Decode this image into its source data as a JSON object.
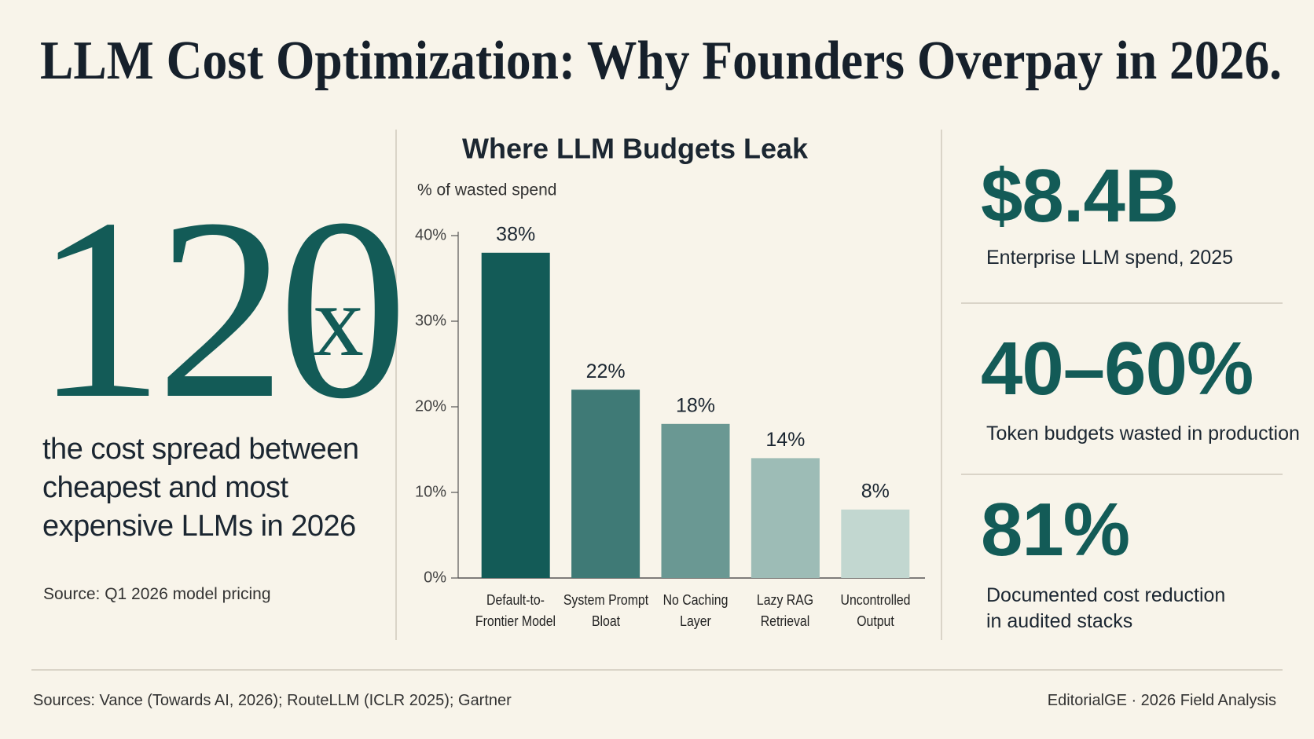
{
  "title": "LLM Cost Optimization: Why Founders Overpay in 2026.",
  "hero": {
    "number": "120",
    "suffix": "x",
    "caption": "the cost spread between cheapest and most expensive LLMs in 2026",
    "source": "Source: Q1 2026 model pricing"
  },
  "chart_data": {
    "type": "bar",
    "title": "Where LLM Budgets Leak",
    "y_label": "% of wasted spend",
    "categories": [
      "Default-to-Frontier Model",
      "System Prompt Bloat",
      "No Caching Layer",
      "Lazy RAG Retrieval",
      "Uncontrolled Output"
    ],
    "values": [
      38,
      22,
      18,
      14,
      8
    ],
    "value_labels": [
      "38%",
      "22%",
      "18%",
      "14%",
      "8%"
    ],
    "colors": [
      "#135b57",
      "#3f7a76",
      "#6a9893",
      "#9dbcb6",
      "#c2d7d0"
    ],
    "ylim": [
      0,
      40
    ],
    "yticks": [
      {
        "value": 0,
        "label": "0%"
      },
      {
        "value": 10,
        "label": "10%"
      },
      {
        "value": 20,
        "label": "20%"
      },
      {
        "value": 30,
        "label": "30%"
      },
      {
        "value": 40,
        "label": "40%"
      }
    ]
  },
  "stats": [
    {
      "value": "$8.4B",
      "label": "Enterprise LLM spend, 2025"
    },
    {
      "value": "40–60%",
      "label": "Token budgets wasted in production"
    },
    {
      "value": "81%",
      "label": "Documented cost reduction in audited stacks"
    }
  ],
  "footer": {
    "sources": "Sources: Vance (Towards AI, 2026); RouteLLM (ICLR 2025); Gartner",
    "credit": "EditorialGE · 2026 Field Analysis"
  }
}
